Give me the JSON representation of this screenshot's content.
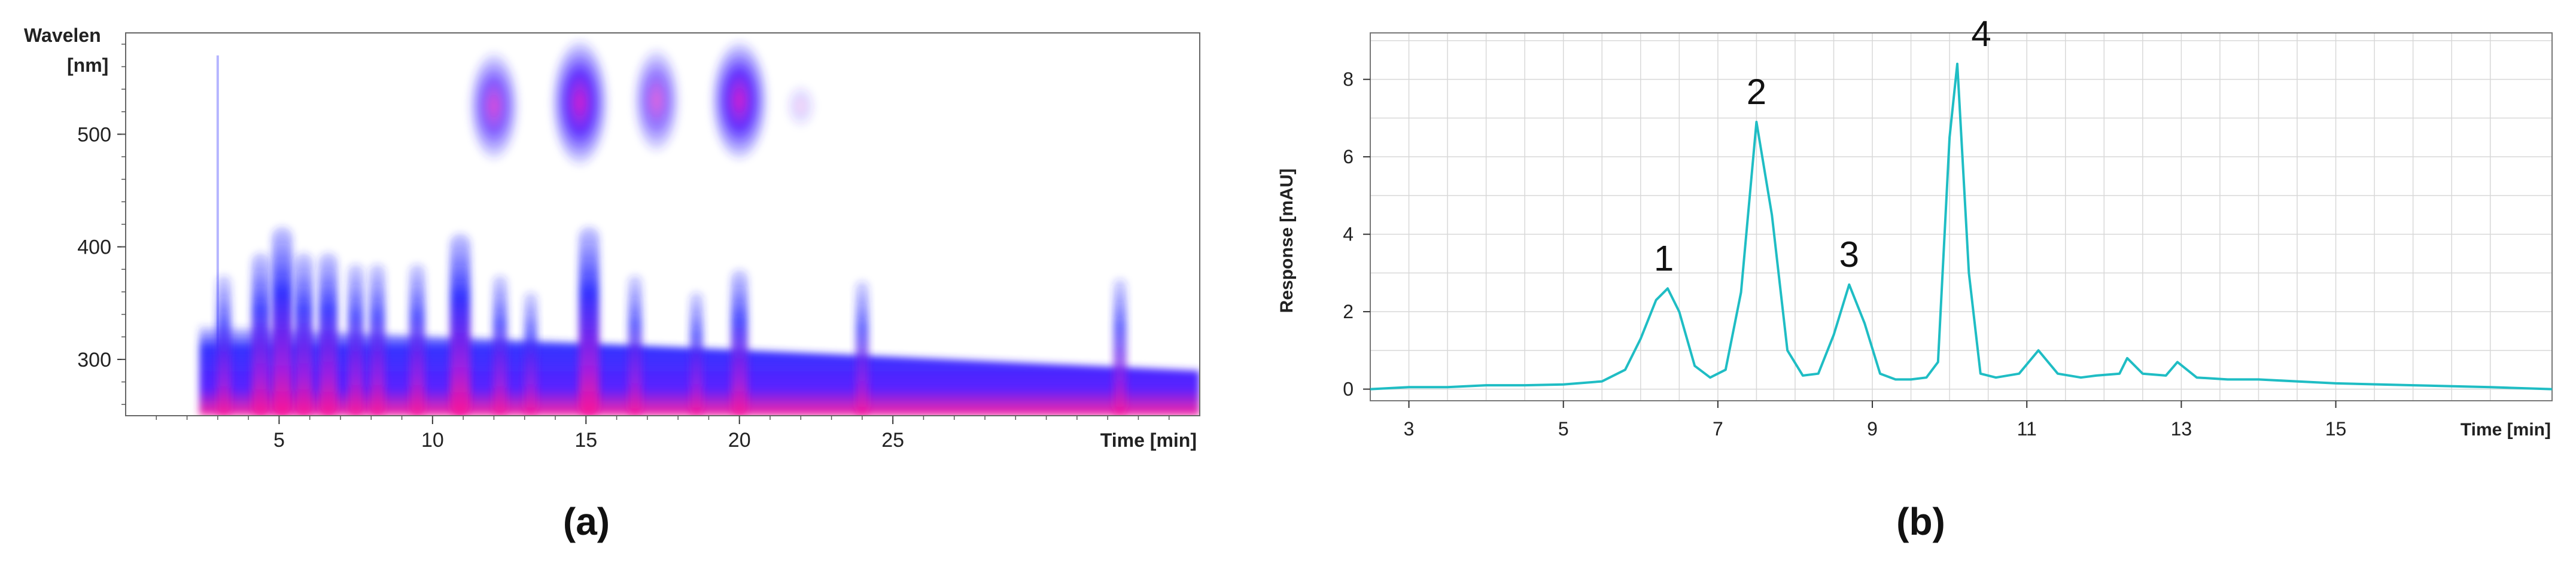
{
  "panels": [
    {
      "caption": "(a)",
      "chart_data": {
        "type": "heatmap",
        "title": "",
        "xlabel": "Time [min]",
        "ylabel_line1": "Wavelen",
        "ylabel_line2": "[nm]",
        "xlim": [
          0,
          35
        ],
        "ylim": [
          250,
          590
        ],
        "x_ticks": [
          5,
          10,
          15,
          20,
          25
        ],
        "y_ticks": [
          300,
          400,
          500
        ],
        "colorscale": [
          "#ffffff",
          "#2a2aff",
          "#ff1493"
        ],
        "grid": false,
        "baseline_band": {
          "x_start": 2.4,
          "x_end": 35,
          "top_nm_start": 330,
          "top_nm_end": 290,
          "description_values": "continuous absorption band 250-330 nm"
        },
        "uv_bands": [
          {
            "x": 3.2,
            "top": 375,
            "intensity": 0.5
          },
          {
            "x": 4.4,
            "top": 395,
            "intensity": 0.8
          },
          {
            "x": 5.1,
            "top": 418,
            "intensity": 1.0
          },
          {
            "x": 5.8,
            "top": 395,
            "intensity": 0.8
          },
          {
            "x": 6.6,
            "top": 395,
            "intensity": 0.85
          },
          {
            "x": 7.5,
            "top": 385,
            "intensity": 0.6
          },
          {
            "x": 8.2,
            "top": 385,
            "intensity": 0.6
          },
          {
            "x": 9.5,
            "top": 385,
            "intensity": 0.6
          },
          {
            "x": 10.9,
            "top": 412,
            "intensity": 1.0
          },
          {
            "x": 12.2,
            "top": 375,
            "intensity": 0.5
          },
          {
            "x": 13.2,
            "top": 360,
            "intensity": 0.4
          },
          {
            "x": 15.1,
            "top": 418,
            "intensity": 1.0
          },
          {
            "x": 16.6,
            "top": 375,
            "intensity": 0.45
          },
          {
            "x": 18.6,
            "top": 360,
            "intensity": 0.4
          },
          {
            "x": 20.0,
            "top": 380,
            "intensity": 0.7
          },
          {
            "x": 24.0,
            "top": 370,
            "intensity": 0.4
          },
          {
            "x": 32.4,
            "top": 372,
            "intensity": 0.4
          }
        ],
        "visible_bands": [
          {
            "x": 12.0,
            "center_nm": 525,
            "height_nm": 50,
            "intensity": 0.8
          },
          {
            "x": 14.8,
            "center_nm": 528,
            "height_nm": 58,
            "intensity": 1.0
          },
          {
            "x": 17.3,
            "center_nm": 530,
            "height_nm": 48,
            "intensity": 0.7
          },
          {
            "x": 20.0,
            "center_nm": 530,
            "height_nm": 55,
            "intensity": 1.0
          },
          {
            "x": 22.0,
            "center_nm": 525,
            "height_nm": 20,
            "intensity": 0.2
          }
        ]
      }
    },
    {
      "caption": "(b)",
      "chart_data": {
        "type": "line",
        "title": "",
        "xlabel": "Time [min]",
        "ylabel": "Response [mAU]",
        "xlim": [
          2.5,
          17.8
        ],
        "ylim": [
          -0.3,
          9.2
        ],
        "x_ticks": [
          3,
          5,
          7,
          9,
          11,
          13,
          15
        ],
        "y_ticks": [
          0,
          2,
          4,
          6,
          8
        ],
        "grid": true,
        "series": [
          {
            "color": "#1fbdc4",
            "x": [
              2.5,
              3.0,
              3.5,
              4.0,
              4.5,
              5.0,
              5.5,
              5.8,
              6.0,
              6.2,
              6.35,
              6.5,
              6.7,
              6.9,
              7.1,
              7.3,
              7.5,
              7.7,
              7.9,
              8.1,
              8.3,
              8.5,
              8.7,
              8.9,
              9.1,
              9.3,
              9.5,
              9.7,
              9.85,
              10.0,
              10.1,
              10.25,
              10.4,
              10.6,
              10.9,
              11.15,
              11.4,
              11.7,
              11.9,
              12.2,
              12.3,
              12.5,
              12.8,
              12.95,
              13.2,
              13.6,
              14.0,
              15.0,
              16.0,
              17.0,
              17.8
            ],
            "y": [
              0.0,
              0.05,
              0.05,
              0.1,
              0.1,
              0.12,
              0.2,
              0.5,
              1.3,
              2.3,
              2.6,
              2.0,
              0.6,
              0.3,
              0.5,
              2.5,
              6.9,
              4.5,
              1.0,
              0.35,
              0.4,
              1.4,
              2.7,
              1.7,
              0.4,
              0.25,
              0.25,
              0.3,
              0.7,
              6.5,
              8.4,
              3.0,
              0.4,
              0.3,
              0.4,
              1.0,
              0.4,
              0.3,
              0.35,
              0.4,
              0.8,
              0.4,
              0.35,
              0.7,
              0.3,
              0.25,
              0.25,
              0.15,
              0.1,
              0.05,
              0.0
            ]
          }
        ],
        "peak_labels": [
          {
            "text": "1",
            "x": 6.3,
            "y": 2.6
          },
          {
            "text": "2",
            "x": 7.5,
            "y": 6.9
          },
          {
            "text": "3",
            "x": 8.7,
            "y": 2.7
          },
          {
            "text": "4",
            "x": 10.1,
            "y": 8.4
          }
        ]
      }
    }
  ]
}
